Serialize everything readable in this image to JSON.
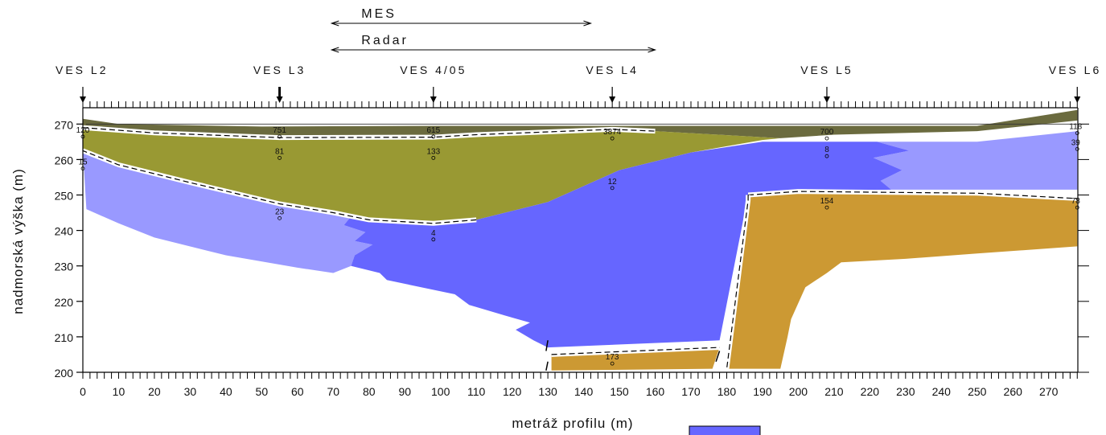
{
  "chart_data": {
    "type": "geological cross-section",
    "xlabel": "metráž profilu (m)",
    "ylabel": "nadmorská výška (m)",
    "xlim": [
      0,
      280
    ],
    "ylim": [
      200,
      275
    ],
    "x_ticks": [
      0,
      10,
      20,
      30,
      40,
      50,
      60,
      70,
      80,
      90,
      100,
      110,
      120,
      130,
      140,
      150,
      160,
      170,
      180,
      190,
      200,
      210,
      220,
      230,
      240,
      250,
      260,
      270
    ],
    "y_ticks": [
      200,
      210,
      220,
      230,
      240,
      250,
      260,
      270
    ],
    "methods": [
      {
        "label": "MES",
        "x_start": 70,
        "x_end": 142
      },
      {
        "label": "Radar",
        "x_start": 70,
        "x_end": 160
      }
    ],
    "soundings": [
      {
        "label": "VES L2",
        "x": 0
      },
      {
        "label": "VES L3",
        "x": 55
      },
      {
        "label": "VES 4/05",
        "x": 98
      },
      {
        "label": "VES L4",
        "x": 148
      },
      {
        "label": "VES L5",
        "x": 208
      },
      {
        "label": "VES L6",
        "x": 278
      }
    ],
    "resistivity_labels": [
      {
        "text": "120",
        "x": 0,
        "y": 268.5
      },
      {
        "text": "15",
        "x": 0,
        "y": 259.5
      },
      {
        "text": "751",
        "x": 55,
        "y": 268.5
      },
      {
        "text": "81",
        "x": 55,
        "y": 262.5
      },
      {
        "text": "23",
        "x": 55,
        "y": 245.5
      },
      {
        "text": "615",
        "x": 98,
        "y": 268.5
      },
      {
        "text": "133",
        "x": 98,
        "y": 262.5
      },
      {
        "text": "4",
        "x": 98,
        "y": 239.5
      },
      {
        "text": "3874",
        "x": 148,
        "y": 268
      },
      {
        "text": "12",
        "x": 148,
        "y": 254
      },
      {
        "text": "700",
        "x": 208,
        "y": 268
      },
      {
        "text": "8",
        "x": 208,
        "y": 263
      },
      {
        "text": "154",
        "x": 208,
        "y": 248.5
      },
      {
        "text": "173",
        "x": 148,
        "y": 204.5
      },
      {
        "text": "118",
        "x": 278,
        "y": 269.5
      },
      {
        "text": "39",
        "x": 278,
        "y": 265
      },
      {
        "text": "78",
        "x": 278,
        "y": 248.5
      }
    ],
    "layers": [
      {
        "name": "top",
        "color": "#6b6b3f",
        "points": [
          [
            0,
            271.5
          ],
          [
            10,
            270
          ],
          [
            50,
            269.3
          ],
          [
            100,
            269.5
          ],
          [
            150,
            269.5
          ],
          [
            200,
            269.5
          ],
          [
            250,
            269.5
          ],
          [
            278,
            274
          ],
          [
            278,
            271
          ],
          [
            250,
            268
          ],
          [
            210,
            267
          ],
          [
            195,
            266
          ],
          [
            160,
            268
          ],
          [
            148,
            268.5
          ],
          [
            110,
            267
          ],
          [
            98,
            266.3
          ],
          [
            55,
            266.2
          ],
          [
            20,
            267.5
          ],
          [
            0,
            269
          ]
        ]
      },
      {
        "name": "olive",
        "color": "#999933",
        "points": [
          [
            0,
            269
          ],
          [
            20,
            267.5
          ],
          [
            55,
            266.2
          ],
          [
            98,
            266.3
          ],
          [
            110,
            267
          ],
          [
            148,
            268.5
          ],
          [
            160,
            268
          ],
          [
            195,
            266
          ],
          [
            190,
            265.5
          ],
          [
            170,
            262
          ],
          [
            150,
            257
          ],
          [
            130,
            248
          ],
          [
            110,
            243
          ],
          [
            98,
            242
          ],
          [
            80,
            243
          ],
          [
            70,
            245
          ],
          [
            55,
            247.5
          ],
          [
            30,
            253.5
          ],
          [
            10,
            258.5
          ],
          [
            0,
            262.5
          ]
        ]
      },
      {
        "name": "light-blue",
        "color": "#9999ff",
        "points": [
          [
            0,
            262.5
          ],
          [
            10,
            258.5
          ],
          [
            30,
            253.5
          ],
          [
            55,
            247.5
          ],
          [
            70,
            245
          ],
          [
            75,
            244
          ],
          [
            73,
            241.5
          ],
          [
            79,
            239.5
          ],
          [
            76,
            237
          ],
          [
            81,
            236
          ],
          [
            76,
            233
          ],
          [
            75,
            230
          ],
          [
            70,
            228
          ],
          [
            60,
            229.5
          ],
          [
            40,
            233
          ],
          [
            20,
            238
          ],
          [
            10,
            242
          ],
          [
            1,
            246
          ]
        ]
      },
      {
        "name": "light-blue-right",
        "color": "#9999ff",
        "points": [
          [
            222,
            265
          ],
          [
            250,
            265
          ],
          [
            278,
            268
          ],
          [
            278,
            251.5
          ],
          [
            250,
            251.5
          ],
          [
            226,
            251.5
          ],
          [
            223,
            254
          ],
          [
            229,
            257
          ],
          [
            221,
            260.5
          ],
          [
            231,
            262.5
          ]
        ]
      },
      {
        "name": "blue",
        "color": "#6666ff",
        "points": [
          [
            75,
            244
          ],
          [
            80,
            243
          ],
          [
            98,
            242
          ],
          [
            110,
            243
          ],
          [
            130,
            248
          ],
          [
            150,
            257
          ],
          [
            170,
            262
          ],
          [
            190,
            265
          ],
          [
            222,
            265
          ],
          [
            231,
            262.5
          ],
          [
            221,
            260.5
          ],
          [
            229,
            257
          ],
          [
            223,
            254
          ],
          [
            226,
            251.5
          ],
          [
            200,
            251
          ],
          [
            186,
            250
          ],
          [
            178,
            209
          ],
          [
            130,
            207
          ],
          [
            126,
            209
          ],
          [
            121,
            212
          ],
          [
            125,
            214
          ],
          [
            118,
            216
          ],
          [
            108,
            219
          ],
          [
            104,
            222
          ],
          [
            85,
            226
          ],
          [
            83,
            228
          ],
          [
            75,
            230
          ],
          [
            76,
            233
          ],
          [
            81,
            236
          ],
          [
            76,
            237
          ],
          [
            79,
            239.5
          ],
          [
            73,
            241.5
          ]
        ]
      },
      {
        "name": "tan-right",
        "color": "#cc9933",
        "points": [
          [
            186,
            250
          ],
          [
            200,
            251
          ],
          [
            250,
            250.5
          ],
          [
            278,
            249
          ],
          [
            278,
            235.5
          ],
          [
            250,
            233.5
          ],
          [
            230,
            232
          ],
          [
            212,
            231
          ],
          [
            208,
            228
          ],
          [
            202,
            224
          ],
          [
            198,
            215
          ],
          [
            197,
            210
          ],
          [
            195,
            201
          ],
          [
            180,
            201
          ],
          [
            186,
            248.5
          ]
        ]
      },
      {
        "name": "tan-bottom",
        "color": "#cc9933",
        "points": [
          [
            131,
            205
          ],
          [
            178,
            207
          ],
          [
            176,
            201
          ],
          [
            131,
            200.5
          ]
        ]
      }
    ]
  }
}
